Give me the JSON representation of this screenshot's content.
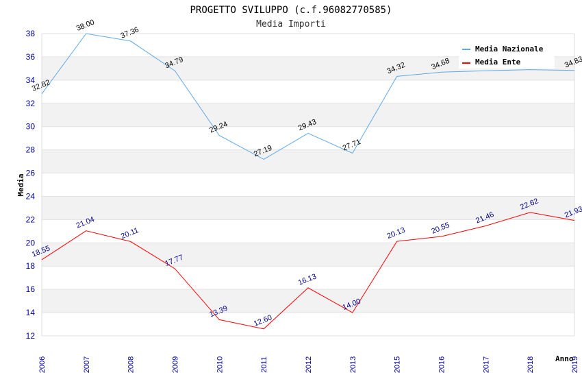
{
  "title": "PROGETTO SVILUPPO (c.f.96082770585)",
  "subtitle": "Media Importi",
  "chart_data": {
    "type": "line",
    "title": "PROGETTO SVILUPPO (c.f.96082770585)",
    "subtitle": "Media Importi",
    "xlabel": "Anno",
    "ylabel": "Media",
    "categories": [
      "2006",
      "2007",
      "2008",
      "2009",
      "2010",
      "2011",
      "2012",
      "2013",
      "2015",
      "2016",
      "2017",
      "2018",
      "2019"
    ],
    "ylim": [
      12,
      38
    ],
    "yticks": [
      "12",
      "14",
      "16",
      "18",
      "20",
      "22",
      "24",
      "26",
      "28",
      "30",
      "32",
      "34",
      "36",
      "38"
    ],
    "grid": "horizontal alternating bands",
    "legend_position": "top-right",
    "series": [
      {
        "name": "Media Nazionale",
        "color": "#5fa8e8",
        "label_color": "#000000",
        "values": [
          32.82,
          38.0,
          37.36,
          34.79,
          29.24,
          27.19,
          29.43,
          27.71,
          34.32,
          34.68,
          34.8,
          34.9,
          34.83
        ],
        "labels": [
          "32.82",
          "38.00",
          "37.36",
          "34.79",
          "29.24",
          "27.19",
          "29.43",
          "27.71",
          "34.32",
          "34.68",
          "",
          "",
          "34.83"
        ]
      },
      {
        "name": "Media Ente",
        "color": "#ff0000",
        "label_color": "#00008b",
        "values": [
          18.55,
          21.04,
          20.11,
          17.77,
          13.39,
          12.6,
          16.13,
          14.0,
          20.13,
          20.55,
          21.46,
          22.62,
          21.93
        ],
        "labels": [
          "18.55",
          "21.04",
          "20.11",
          "17.77",
          "13.39",
          "12.60",
          "16.13",
          "14.00",
          "20.13",
          "20.55",
          "21.46",
          "22.62",
          "21.93"
        ]
      }
    ]
  }
}
